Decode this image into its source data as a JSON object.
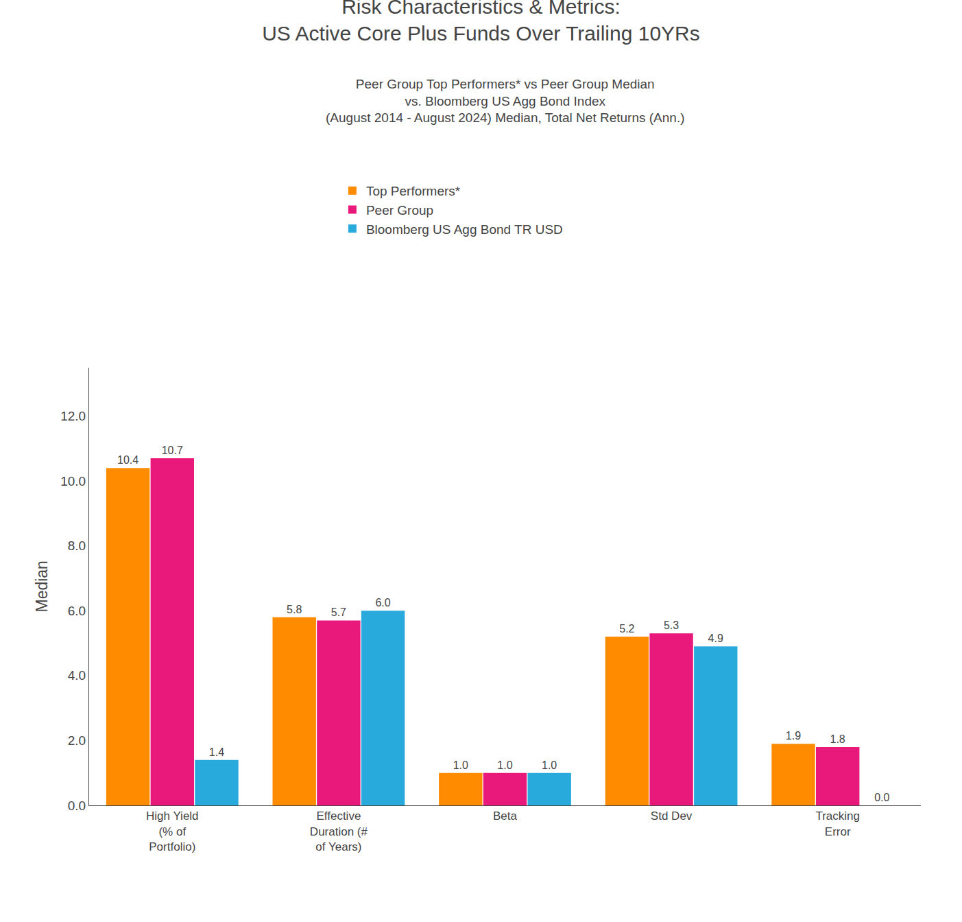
{
  "chart_data": {
    "type": "bar",
    "title": "Risk Characteristics & Metrics:\nUS Active Core Plus Funds Over Trailing 10YRs",
    "subtitle": "Peer Group Top Performers* vs Peer Group Median\nvs. Bloomberg US Agg Bond Index\n(August 2014 - August 2024) Median, Total Net Returns (Ann.)",
    "y_label": "Median",
    "categories": [
      "High Yield\n(% of\nPortfolio)",
      "Effective\nDuration (#\nof Years)",
      "Beta",
      "Std Dev",
      "Tracking\nError"
    ],
    "series": [
      {
        "name": "Top Performers*",
        "color": "#FF8C00",
        "values": [
          10.4,
          5.8,
          1.0,
          5.2,
          1.9
        ],
        "value_labels": [
          "10.4",
          "5.8",
          "1.0",
          "5.2",
          "1.9"
        ]
      },
      {
        "name": "Peer Group",
        "color": "#E8197A",
        "values": [
          10.7,
          5.7,
          1.0,
          5.3,
          1.8
        ],
        "value_labels": [
          "10.7",
          "5.7",
          "1.0",
          "5.3",
          "1.8"
        ]
      },
      {
        "name": "Bloomberg US Agg Bond TR USD",
        "color": "#29AADC",
        "values": [
          1.4,
          6.0,
          1.0,
          4.9,
          0.0
        ],
        "value_labels": [
          "1.4",
          "6.0",
          "1.0",
          "4.9",
          "0.0"
        ]
      }
    ],
    "ylim": [
      0,
      13.5
    ],
    "yticks": [
      {
        "value": 0,
        "label": "0.0"
      },
      {
        "value": 2,
        "label": "2.0"
      },
      {
        "value": 4,
        "label": "4.0"
      },
      {
        "value": 6,
        "label": "6.0"
      },
      {
        "value": 8,
        "label": "8.0"
      },
      {
        "value": 10,
        "label": "10.0"
      },
      {
        "value": 12,
        "label": "12.0"
      }
    ],
    "grid": false,
    "legend": "top",
    "data_labels": true
  }
}
